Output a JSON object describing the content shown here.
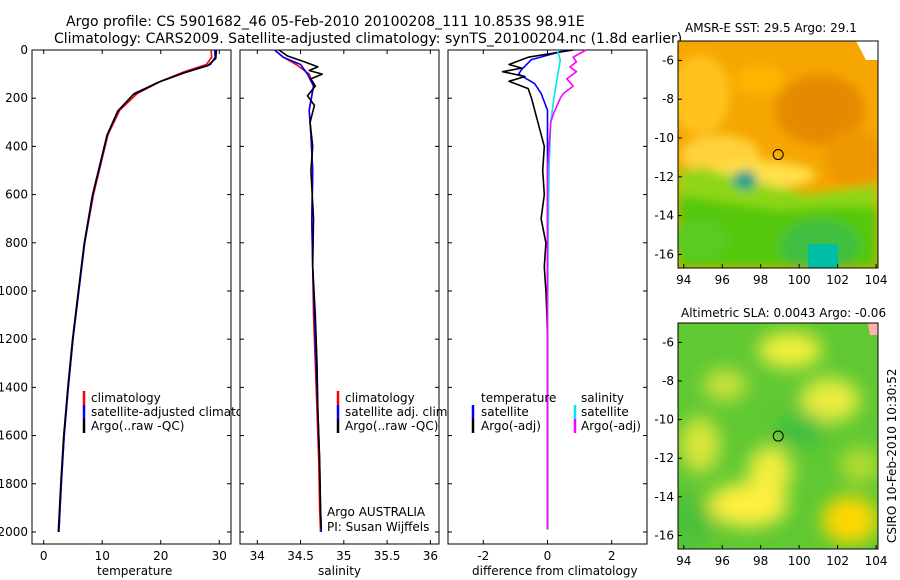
{
  "header": {
    "line1": "Argo profile: CS 5901682_46 05-Feb-2010 20100208_111 10.853S 98.91E",
    "line2": "Climatology: CARS2009. Satellite-adjusted climatology: synTS_20100204.nc (1.8d earlier)"
  },
  "side_stamp": "CSIRO 10-Feb-2010 10:30:52",
  "colors": {
    "climatology": "#ff0000",
    "satellite": "#0000ff",
    "argo": "#000000",
    "sat_diff_salinity": "#00e5ee",
    "argo_diff_salinity": "#ff00ff"
  },
  "chart_data": [
    {
      "type": "line",
      "id": "temperature",
      "xlabel": "temperature",
      "xlim": [
        -2,
        32
      ],
      "ylim": [
        0,
        2050
      ],
      "xticks": [
        0,
        10,
        20,
        30
      ],
      "yticks": [
        0,
        200,
        400,
        600,
        800,
        1000,
        1200,
        1400,
        1600,
        1800,
        2000
      ],
      "legend": [
        "climatology",
        "satellite-adjusted climatology",
        "Argo(..raw -QC)"
      ],
      "series": [
        {
          "name": "climatology",
          "color": "#ff0000",
          "points": [
            [
              28.6,
              0
            ],
            [
              28.7,
              30
            ],
            [
              27.8,
              60
            ],
            [
              24,
              90
            ],
            [
              20,
              130
            ],
            [
              16,
              180
            ],
            [
              13,
              250
            ],
            [
              11,
              350
            ],
            [
              10,
              450
            ],
            [
              8.5,
              600
            ],
            [
              7,
              800
            ],
            [
              6,
              1000
            ],
            [
              5,
              1200
            ],
            [
              4.2,
              1400
            ],
            [
              3.5,
              1600
            ],
            [
              3,
              1800
            ],
            [
              2.6,
              2000
            ]
          ]
        },
        {
          "name": "satellite-adjusted climatology",
          "color": "#0000ff",
          "points": [
            [
              29.2,
              0
            ],
            [
              29.3,
              30
            ],
            [
              28.5,
              60
            ],
            [
              24.5,
              90
            ],
            [
              20,
              130
            ],
            [
              15.5,
              180
            ],
            [
              12.8,
              250
            ],
            [
              10.9,
              350
            ],
            [
              9.9,
              450
            ],
            [
              8.4,
              600
            ],
            [
              7,
              800
            ],
            [
              6,
              1000
            ],
            [
              5,
              1200
            ],
            [
              4.2,
              1400
            ],
            [
              3.5,
              1600
            ],
            [
              3,
              1800
            ],
            [
              2.6,
              2000
            ]
          ]
        },
        {
          "name": "Argo(..raw -QC)",
          "color": "#000000",
          "points": [
            [
              29.5,
              0
            ],
            [
              29.4,
              35
            ],
            [
              28,
              65
            ],
            [
              24,
              95
            ],
            [
              19.5,
              135
            ],
            [
              15.3,
              185
            ],
            [
              12.6,
              255
            ],
            [
              10.8,
              355
            ],
            [
              9.8,
              455
            ],
            [
              8.3,
              605
            ],
            [
              6.9,
              805
            ],
            [
              5.9,
              1005
            ],
            [
              4.9,
              1205
            ],
            [
              4.1,
              1405
            ],
            [
              3.4,
              1605
            ],
            [
              2.9,
              1805
            ],
            [
              2.5,
              2000
            ]
          ]
        }
      ]
    },
    {
      "type": "line",
      "id": "salinity",
      "xlabel": "salinity",
      "xlim": [
        33.8,
        36.1
      ],
      "ylim": [
        0,
        2050
      ],
      "xticks": [
        34,
        34.5,
        35,
        35.5,
        36
      ],
      "xticklabels": [
        "34",
        "34.5",
        "35",
        "35.5",
        "36"
      ],
      "legend": [
        "climatology",
        "satellite adj. clim.",
        "Argo(..raw -QC)"
      ],
      "annotation": [
        "Argo AUSTRALIA",
        "PI: Susan Wijffels"
      ],
      "series": [
        {
          "name": "climatology",
          "color": "#ff0000",
          "points": [
            [
              34.2,
              0
            ],
            [
              34.3,
              30
            ],
            [
              34.45,
              60
            ],
            [
              34.6,
              100
            ],
            [
              34.65,
              150
            ],
            [
              34.6,
              250
            ],
            [
              34.62,
              350
            ],
            [
              34.64,
              500
            ],
            [
              34.63,
              700
            ],
            [
              34.64,
              900
            ],
            [
              34.65,
              1100
            ],
            [
              34.67,
              1300
            ],
            [
              34.69,
              1500
            ],
            [
              34.71,
              1700
            ],
            [
              34.72,
              1900
            ],
            [
              34.73,
              2000
            ]
          ]
        },
        {
          "name": "satellite adj. clim.",
          "color": "#0000ff",
          "points": [
            [
              34.2,
              0
            ],
            [
              34.3,
              30
            ],
            [
              34.5,
              60
            ],
            [
              34.58,
              100
            ],
            [
              34.65,
              150
            ],
            [
              34.6,
              250
            ],
            [
              34.62,
              350
            ],
            [
              34.64,
              500
            ],
            [
              34.63,
              700
            ],
            [
              34.64,
              900
            ],
            [
              34.66,
              1100
            ],
            [
              34.68,
              1300
            ],
            [
              34.7,
              1500
            ],
            [
              34.72,
              1700
            ],
            [
              34.73,
              1900
            ],
            [
              34.74,
              2000
            ]
          ]
        },
        {
          "name": "Argo(..raw -QC)",
          "color": "#000000",
          "points": [
            [
              34.25,
              0
            ],
            [
              34.35,
              25
            ],
            [
              34.55,
              50
            ],
            [
              34.7,
              70
            ],
            [
              34.6,
              85
            ],
            [
              34.75,
              100
            ],
            [
              34.62,
              120
            ],
            [
              34.67,
              150
            ],
            [
              34.58,
              190
            ],
            [
              34.66,
              230
            ],
            [
              34.61,
              300
            ],
            [
              34.64,
              400
            ],
            [
              34.62,
              500
            ],
            [
              34.65,
              700
            ],
            [
              34.64,
              900
            ],
            [
              34.67,
              1100
            ],
            [
              34.69,
              1300
            ],
            [
              34.7,
              1500
            ],
            [
              34.72,
              1700
            ],
            [
              34.73,
              1900
            ],
            [
              34.74,
              1990
            ]
          ]
        }
      ]
    },
    {
      "type": "line",
      "id": "difference",
      "xlabel": "difference from climatology",
      "xlim": [
        -3.1,
        3.1
      ],
      "ylim": [
        0,
        2050
      ],
      "xticks": [
        -2,
        0,
        2
      ],
      "legend_left": [
        "temperature",
        "satellite",
        "Argo(-adj)"
      ],
      "legend_right": [
        "salinity",
        "satellite",
        "Argo(-adj)"
      ],
      "series": [
        {
          "name": "satellite",
          "color": "#0000ff",
          "points": [
            [
              0.6,
              0
            ],
            [
              -0.5,
              40
            ],
            [
              -0.8,
              80
            ],
            [
              -0.9,
              100
            ],
            [
              -0.4,
              140
            ],
            [
              -0.2,
              180
            ],
            [
              0,
              250
            ],
            [
              0,
              400
            ],
            [
              0,
              700
            ],
            [
              0,
              1000
            ],
            [
              0,
              1300
            ],
            [
              0,
              1600
            ],
            [
              0,
              1900
            ],
            [
              0,
              1990
            ]
          ]
        },
        {
          "name": "Argo(-adj)",
          "color": "#000000",
          "points": [
            [
              0.8,
              0
            ],
            [
              -0.6,
              30
            ],
            [
              -1.2,
              60
            ],
            [
              -0.8,
              75
            ],
            [
              -1.4,
              90
            ],
            [
              -0.7,
              110
            ],
            [
              -1.2,
              130
            ],
            [
              -0.6,
              160
            ],
            [
              -0.5,
              200
            ],
            [
              -0.3,
              300
            ],
            [
              -0.1,
              400
            ],
            [
              -0.15,
              500
            ],
            [
              -0.1,
              600
            ],
            [
              -0.2,
              700
            ],
            [
              -0.05,
              800
            ],
            [
              -0.1,
              900
            ],
            [
              -0.05,
              1000
            ],
            [
              -0.02,
              1100
            ],
            [
              0,
              1200
            ],
            [
              0,
              1400
            ],
            [
              0,
              1600
            ],
            [
              0,
              1800
            ],
            [
              0,
              1990
            ]
          ]
        },
        {
          "name": "satellite",
          "color": "#00e5ee",
          "points": [
            [
              0.3,
              0
            ],
            [
              0.4,
              40
            ],
            [
              0.35,
              80
            ],
            [
              0.3,
              120
            ],
            [
              0.2,
              200
            ],
            [
              0.1,
              300
            ],
            [
              0.05,
              500
            ],
            [
              0.02,
              800
            ],
            [
              0,
              1200
            ],
            [
              0,
              1600
            ],
            [
              0,
              1990
            ]
          ]
        },
        {
          "name": "Argo(-adj)",
          "color": "#ff00ff",
          "points": [
            [
              1.2,
              0
            ],
            [
              0.8,
              30
            ],
            [
              0.9,
              50
            ],
            [
              0.7,
              70
            ],
            [
              0.9,
              90
            ],
            [
              0.6,
              120
            ],
            [
              0.8,
              150
            ],
            [
              0.5,
              180
            ],
            [
              0.4,
              200
            ],
            [
              0.2,
              260
            ],
            [
              0.1,
              300
            ],
            [
              0.05,
              400
            ],
            [
              0,
              500
            ],
            [
              0,
              800
            ],
            [
              0,
              1200
            ],
            [
              0,
              1600
            ],
            [
              0,
              1990
            ]
          ]
        }
      ]
    },
    {
      "type": "heatmap",
      "id": "sst-map",
      "title": "AMSR-E SST: 29.5 Argo: 29.1",
      "xlim": [
        93.7,
        104.1
      ],
      "ylim": [
        -16.7,
        -5
      ],
      "xticks": [
        94,
        96,
        98,
        100,
        102,
        104
      ],
      "yticks": [
        -6,
        -8,
        -10,
        -12,
        -14,
        -16
      ],
      "marker": {
        "lon": 98.91,
        "lat": -10.853
      }
    },
    {
      "type": "heatmap",
      "id": "sla-map",
      "title": "Altimetric SLA: 0.0043 Argo: -0.06",
      "xlim": [
        93.7,
        104.1
      ],
      "ylim": [
        -16.7,
        -5
      ],
      "xticks": [
        94,
        96,
        98,
        100,
        102,
        104
      ],
      "yticks": [
        -6,
        -8,
        -10,
        -12,
        -14,
        -16
      ],
      "marker": {
        "lon": 98.91,
        "lat": -10.853
      }
    }
  ]
}
